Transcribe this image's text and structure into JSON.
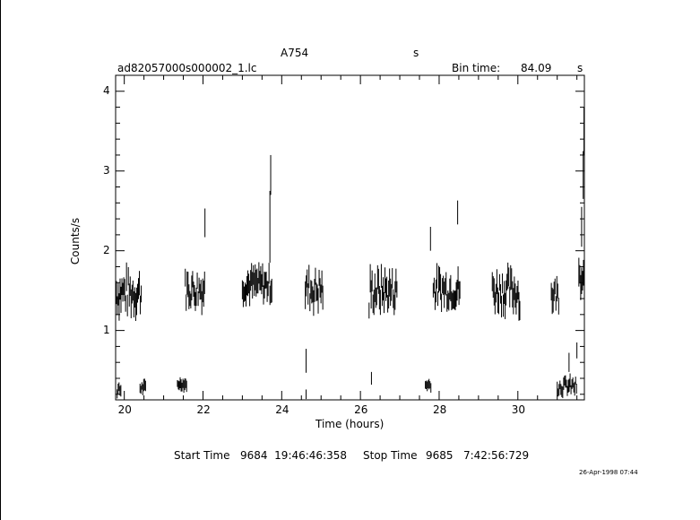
{
  "header": {
    "object": "A754",
    "object_suffix": "s",
    "filename": "ad82057000s000002_1.lc",
    "bin_label": "Bin time:",
    "bin_value": "84.09",
    "bin_unit": "s"
  },
  "footer": {
    "start_label": "Start Time",
    "start_value": "9684  19:46:46:358",
    "stop_label": "Stop Time",
    "stop_value": "9685   7:42:56:729",
    "stamp": "26-Apr-1998 07:44"
  },
  "chart_data": {
    "type": "scatter",
    "title": "A754",
    "xlabel": "Time (hours)",
    "ylabel": "Counts/s",
    "xlim": [
      19.78,
      31.69
    ],
    "ylim": [
      0.13,
      4.2
    ],
    "x_ticks": [
      20,
      22,
      24,
      26,
      28,
      30
    ],
    "x_tick_labels": [
      "20",
      "22",
      "24",
      "26",
      "28",
      "30"
    ],
    "y_ticks": [
      1,
      2,
      3,
      4
    ],
    "y_tick_labels": [
      "1",
      "2",
      "3",
      "4"
    ],
    "grid": false,
    "legend": "none",
    "error_bars": "vertical",
    "segments": [
      {
        "x0": 19.8,
        "x1": 20.45,
        "mean": 1.48,
        "spread": 0.22,
        "err": 0.14
      },
      {
        "x0": 19.82,
        "x1": 19.92,
        "mean": 0.25,
        "spread": 0.05,
        "err": 0.06
      },
      {
        "x0": 20.4,
        "x1": 20.55,
        "mean": 0.28,
        "spread": 0.05,
        "err": 0.06
      },
      {
        "x0": 21.35,
        "x1": 21.6,
        "mean": 0.33,
        "spread": 0.04,
        "err": 0.06
      },
      {
        "x0": 21.55,
        "x1": 22.05,
        "mean": 1.52,
        "spread": 0.18,
        "err": 0.13
      },
      {
        "x0": 23.0,
        "x1": 23.75,
        "mean": 1.58,
        "spread": 0.15,
        "err": 0.13
      },
      {
        "x0": 24.6,
        "x1": 25.05,
        "mean": 1.52,
        "spread": 0.2,
        "err": 0.14
      },
      {
        "x0": 26.25,
        "x1": 26.95,
        "mean": 1.5,
        "spread": 0.2,
        "err": 0.14
      },
      {
        "x0": 27.65,
        "x1": 27.8,
        "mean": 0.32,
        "spread": 0.04,
        "err": 0.06
      },
      {
        "x0": 27.85,
        "x1": 28.55,
        "mean": 1.52,
        "spread": 0.18,
        "err": 0.13
      },
      {
        "x0": 29.35,
        "x1": 30.05,
        "mean": 1.5,
        "spread": 0.2,
        "err": 0.14
      },
      {
        "x0": 30.85,
        "x1": 31.05,
        "mean": 1.45,
        "spread": 0.15,
        "err": 0.13
      },
      {
        "x0": 31.0,
        "x1": 31.5,
        "mean": 0.3,
        "spread": 0.08,
        "err": 0.07
      },
      {
        "x0": 31.55,
        "x1": 31.68,
        "mean": 1.6,
        "spread": 0.2,
        "err": 0.14
      }
    ],
    "points": [
      {
        "x": 22.05,
        "y": 2.35,
        "err": 0.18
      },
      {
        "x": 23.7,
        "y": 2.3,
        "err": 0.45
      },
      {
        "x": 23.72,
        "y": 2.95,
        "err": 0.25
      },
      {
        "x": 24.62,
        "y": 0.62,
        "err": 0.15
      },
      {
        "x": 24.62,
        "y": 0.2,
        "err": 0.06
      },
      {
        "x": 26.22,
        "y": 1.25,
        "err": 0.1
      },
      {
        "x": 26.28,
        "y": 0.4,
        "err": 0.08
      },
      {
        "x": 27.78,
        "y": 2.15,
        "err": 0.15
      },
      {
        "x": 28.47,
        "y": 2.48,
        "err": 0.15
      },
      {
        "x": 30.05,
        "y": 1.25,
        "err": 0.12
      },
      {
        "x": 31.3,
        "y": 0.6,
        "err": 0.12
      },
      {
        "x": 31.5,
        "y": 0.75,
        "err": 0.1
      },
      {
        "x": 31.62,
        "y": 2.3,
        "err": 0.25
      },
      {
        "x": 31.66,
        "y": 2.95,
        "err": 0.3
      },
      {
        "x": 31.68,
        "y": 3.5,
        "err": 0.3
      }
    ]
  }
}
